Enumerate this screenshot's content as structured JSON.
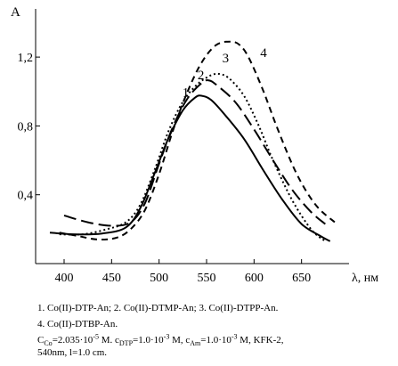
{
  "chart_data": {
    "type": "line",
    "ylabel": "A",
    "xlabel": "λ, нм",
    "xlim": [
      370,
      700
    ],
    "ylim": [
      0.0,
      1.48
    ],
    "xticks": [
      400,
      450,
      500,
      550,
      600,
      650
    ],
    "yticks": [
      0.4,
      0.8,
      1.2
    ],
    "ytick_labels": [
      "0,4",
      "0,8",
      "1,2"
    ],
    "grid": false,
    "series": [
      {
        "name": "1",
        "label_x": 528,
        "label_y": 0.97,
        "style": "solid",
        "x": [
          385,
          410,
          440,
          465,
          480,
          495,
          510,
          525,
          538,
          545,
          555,
          570,
          590,
          610,
          630,
          650,
          670,
          680
        ],
        "y": [
          0.18,
          0.17,
          0.175,
          0.21,
          0.32,
          0.52,
          0.73,
          0.89,
          0.965,
          0.975,
          0.95,
          0.86,
          0.72,
          0.54,
          0.37,
          0.23,
          0.16,
          0.13
        ]
      },
      {
        "name": "2",
        "label_x": 544,
        "label_y": 1.07,
        "style": "long-dash",
        "x": [
          400,
          425,
          450,
          470,
          485,
          500,
          515,
          530,
          545,
          552,
          560,
          580,
          600,
          620,
          640,
          660,
          675
        ],
        "y": [
          0.28,
          0.24,
          0.22,
          0.24,
          0.35,
          0.58,
          0.8,
          0.96,
          1.05,
          1.065,
          1.04,
          0.94,
          0.78,
          0.6,
          0.43,
          0.3,
          0.23
        ]
      },
      {
        "name": "3",
        "label_x": 570,
        "label_y": 1.17,
        "style": "dotted",
        "x": [
          395,
          420,
          445,
          465,
          480,
          495,
          510,
          525,
          540,
          555,
          565,
          575,
          590,
          605,
          620,
          640,
          660,
          675
        ],
        "y": [
          0.17,
          0.17,
          0.2,
          0.24,
          0.34,
          0.54,
          0.77,
          0.94,
          1.04,
          1.095,
          1.1,
          1.07,
          0.97,
          0.8,
          0.6,
          0.37,
          0.2,
          0.13
        ]
      },
      {
        "name": "4",
        "label_x": 610,
        "label_y": 1.2,
        "style": "short-dash",
        "x": [
          395,
          415,
          435,
          455,
          470,
          485,
          500,
          515,
          530,
          545,
          560,
          575,
          585,
          595,
          610,
          625,
          645,
          665,
          685
        ],
        "y": [
          0.18,
          0.16,
          0.14,
          0.15,
          0.2,
          0.31,
          0.52,
          0.78,
          1.0,
          1.17,
          1.27,
          1.29,
          1.27,
          1.19,
          1.0,
          0.78,
          0.52,
          0.34,
          0.24
        ]
      }
    ]
  },
  "caption": {
    "line1": "1. Co(II)-DTP-An; 2. Co(II)-DTMP-An; 3. Co(II)-DTPP-An.",
    "line2": "4. Co(II)-DTBP-An.",
    "c_co_sub": "Co",
    "c_co_val": "=2.035·10",
    "c_co_exp": "-5",
    "c_co_unit": " M. c",
    "c_dtp_sub": "DTP",
    "c_dtp_val": "=1.0·10",
    "c_dtp_exp": "-3",
    "c_dtp_unit": " M, c",
    "c_an_sub": "Am",
    "c_an_val": "=1.0·10",
    "c_an_exp": "-3",
    "c_an_unit": " M, KFK-2,",
    "line4": "540nm, l=1.0 cm.",
    "c_prefix": "C"
  }
}
